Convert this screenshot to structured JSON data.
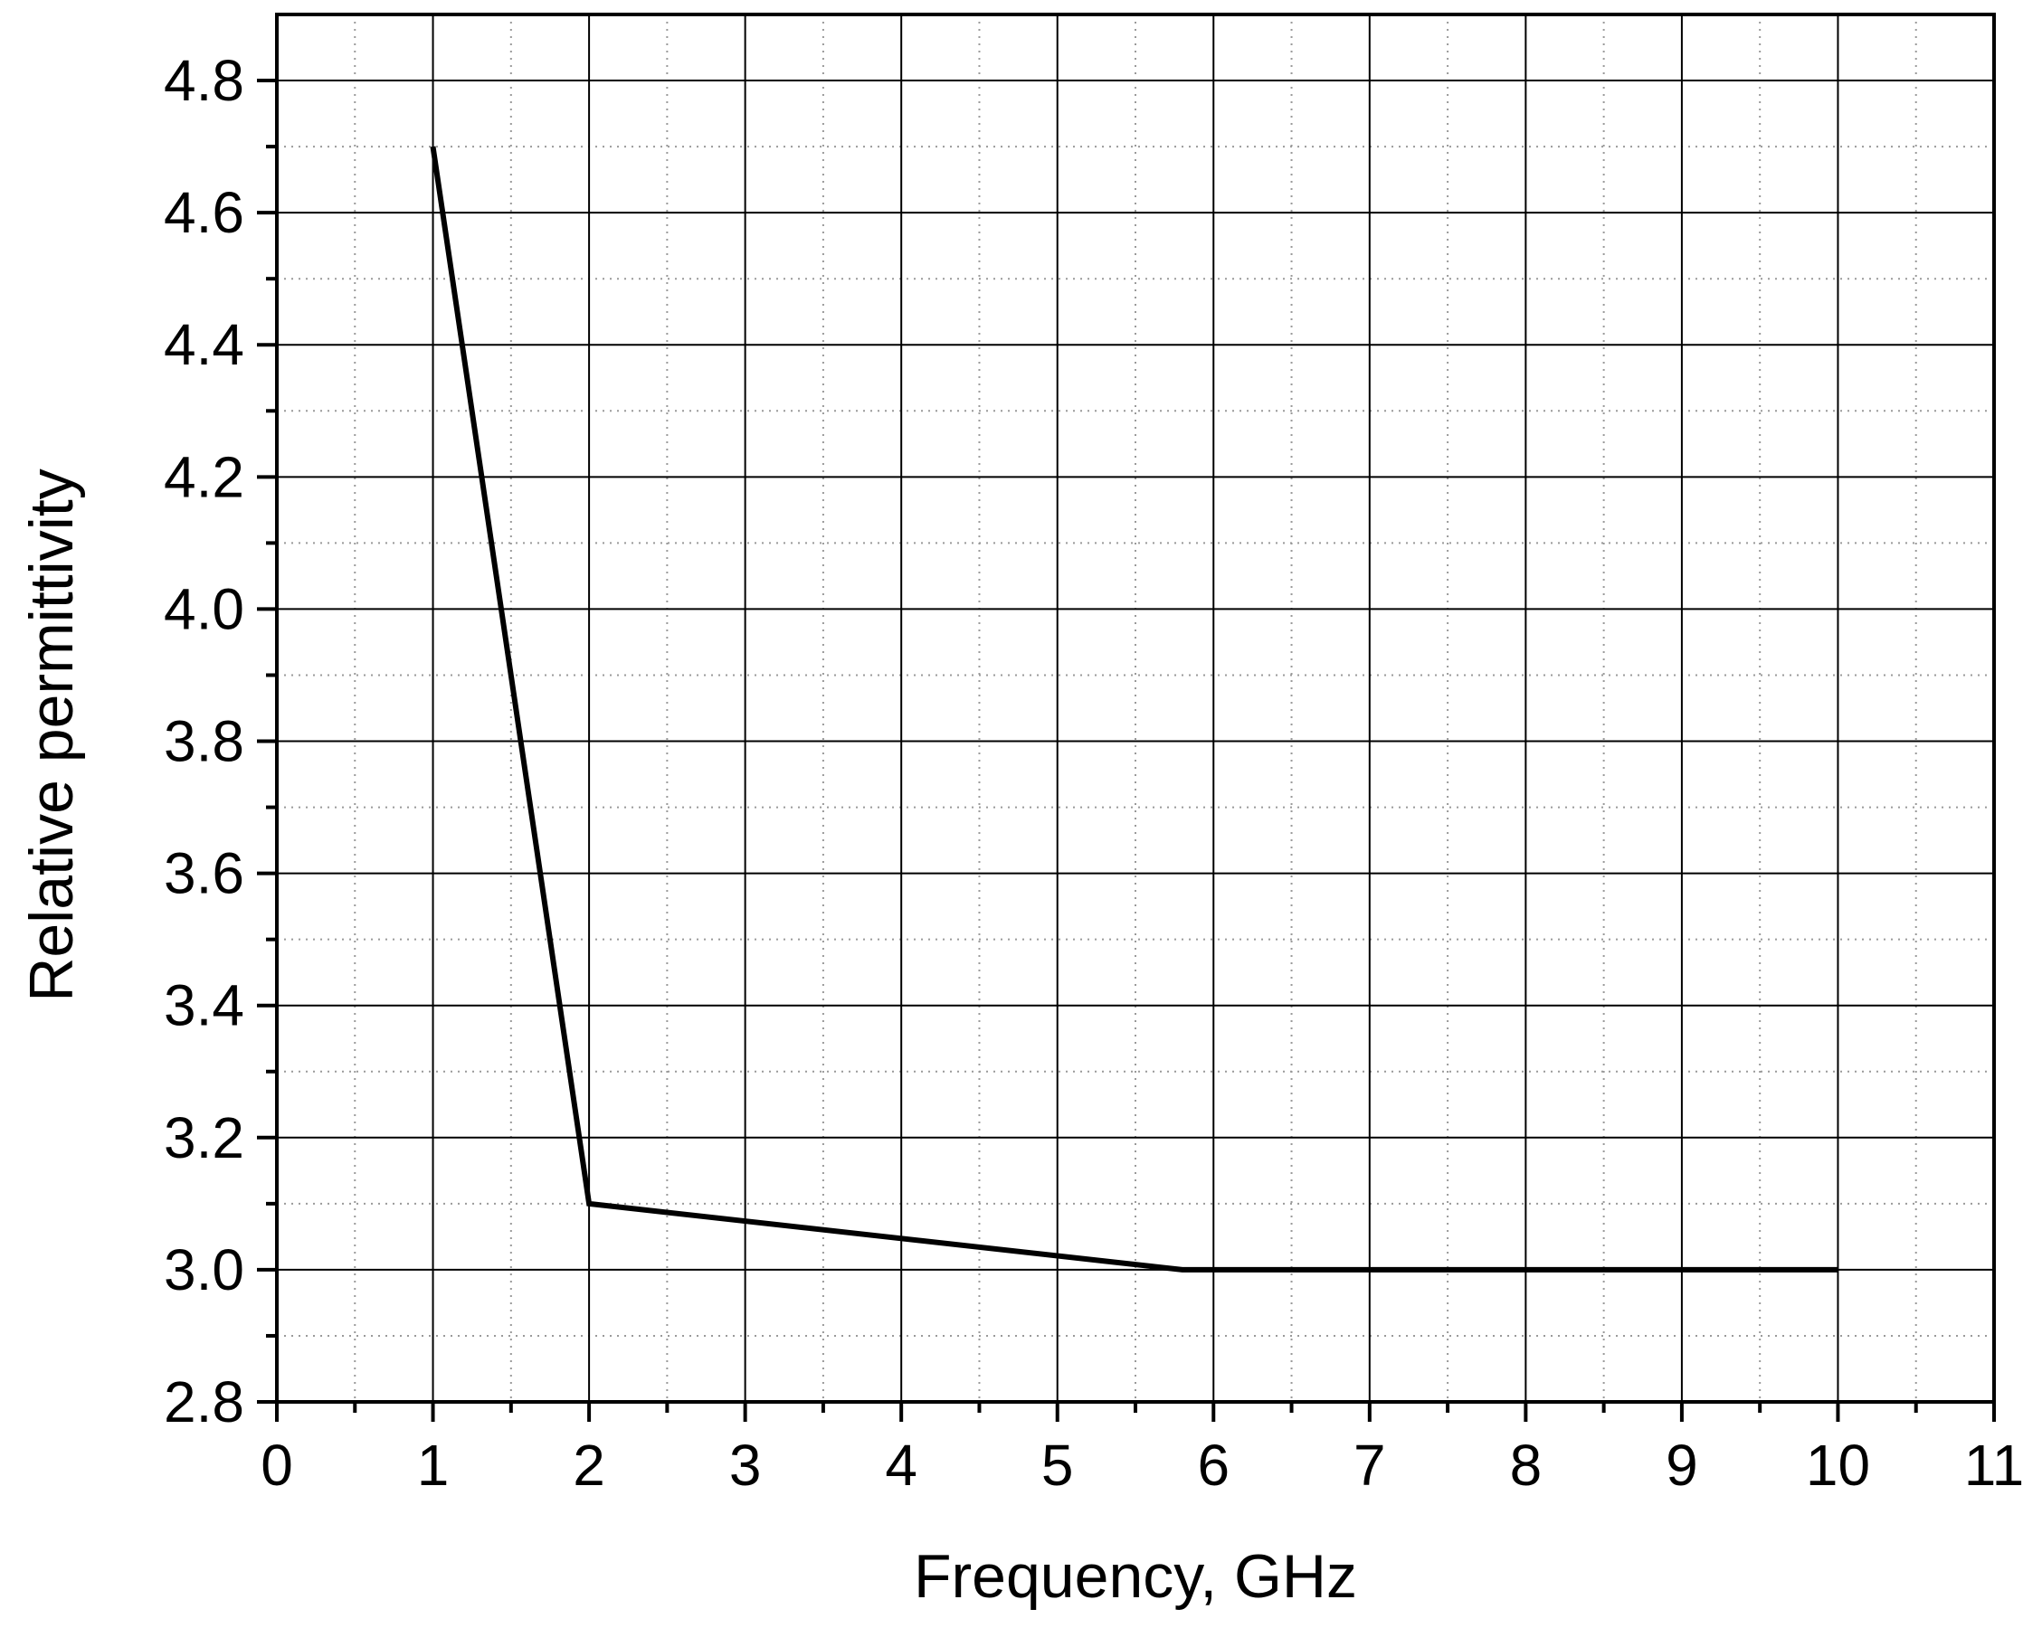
{
  "chart_data": {
    "type": "line",
    "title": "",
    "xlabel": "Frequency, GHz",
    "ylabel": "Relative permittivity",
    "xlim": [
      0,
      11
    ],
    "ylim": [
      2.8,
      4.9
    ],
    "x_ticks": [
      "0",
      "1",
      "2",
      "3",
      "4",
      "5",
      "6",
      "7",
      "8",
      "9",
      "10",
      "11"
    ],
    "y_ticks": [
      "2.8",
      "3.0",
      "3.2",
      "3.4",
      "3.6",
      "3.8",
      "4.0",
      "4.2",
      "4.4",
      "4.6",
      "4.8"
    ],
    "x_tick_values": [
      0,
      1,
      2,
      3,
      4,
      5,
      6,
      7,
      8,
      9,
      10,
      11
    ],
    "y_tick_values": [
      2.8,
      3.0,
      3.2,
      3.4,
      3.6,
      3.8,
      4.0,
      4.2,
      4.4,
      4.6,
      4.8
    ],
    "grid": true,
    "series": [
      {
        "color": "#000000",
        "x": [
          1,
          2,
          5.8,
          10
        ],
        "y": [
          4.7,
          3.1,
          3.0,
          3.0
        ]
      }
    ]
  }
}
